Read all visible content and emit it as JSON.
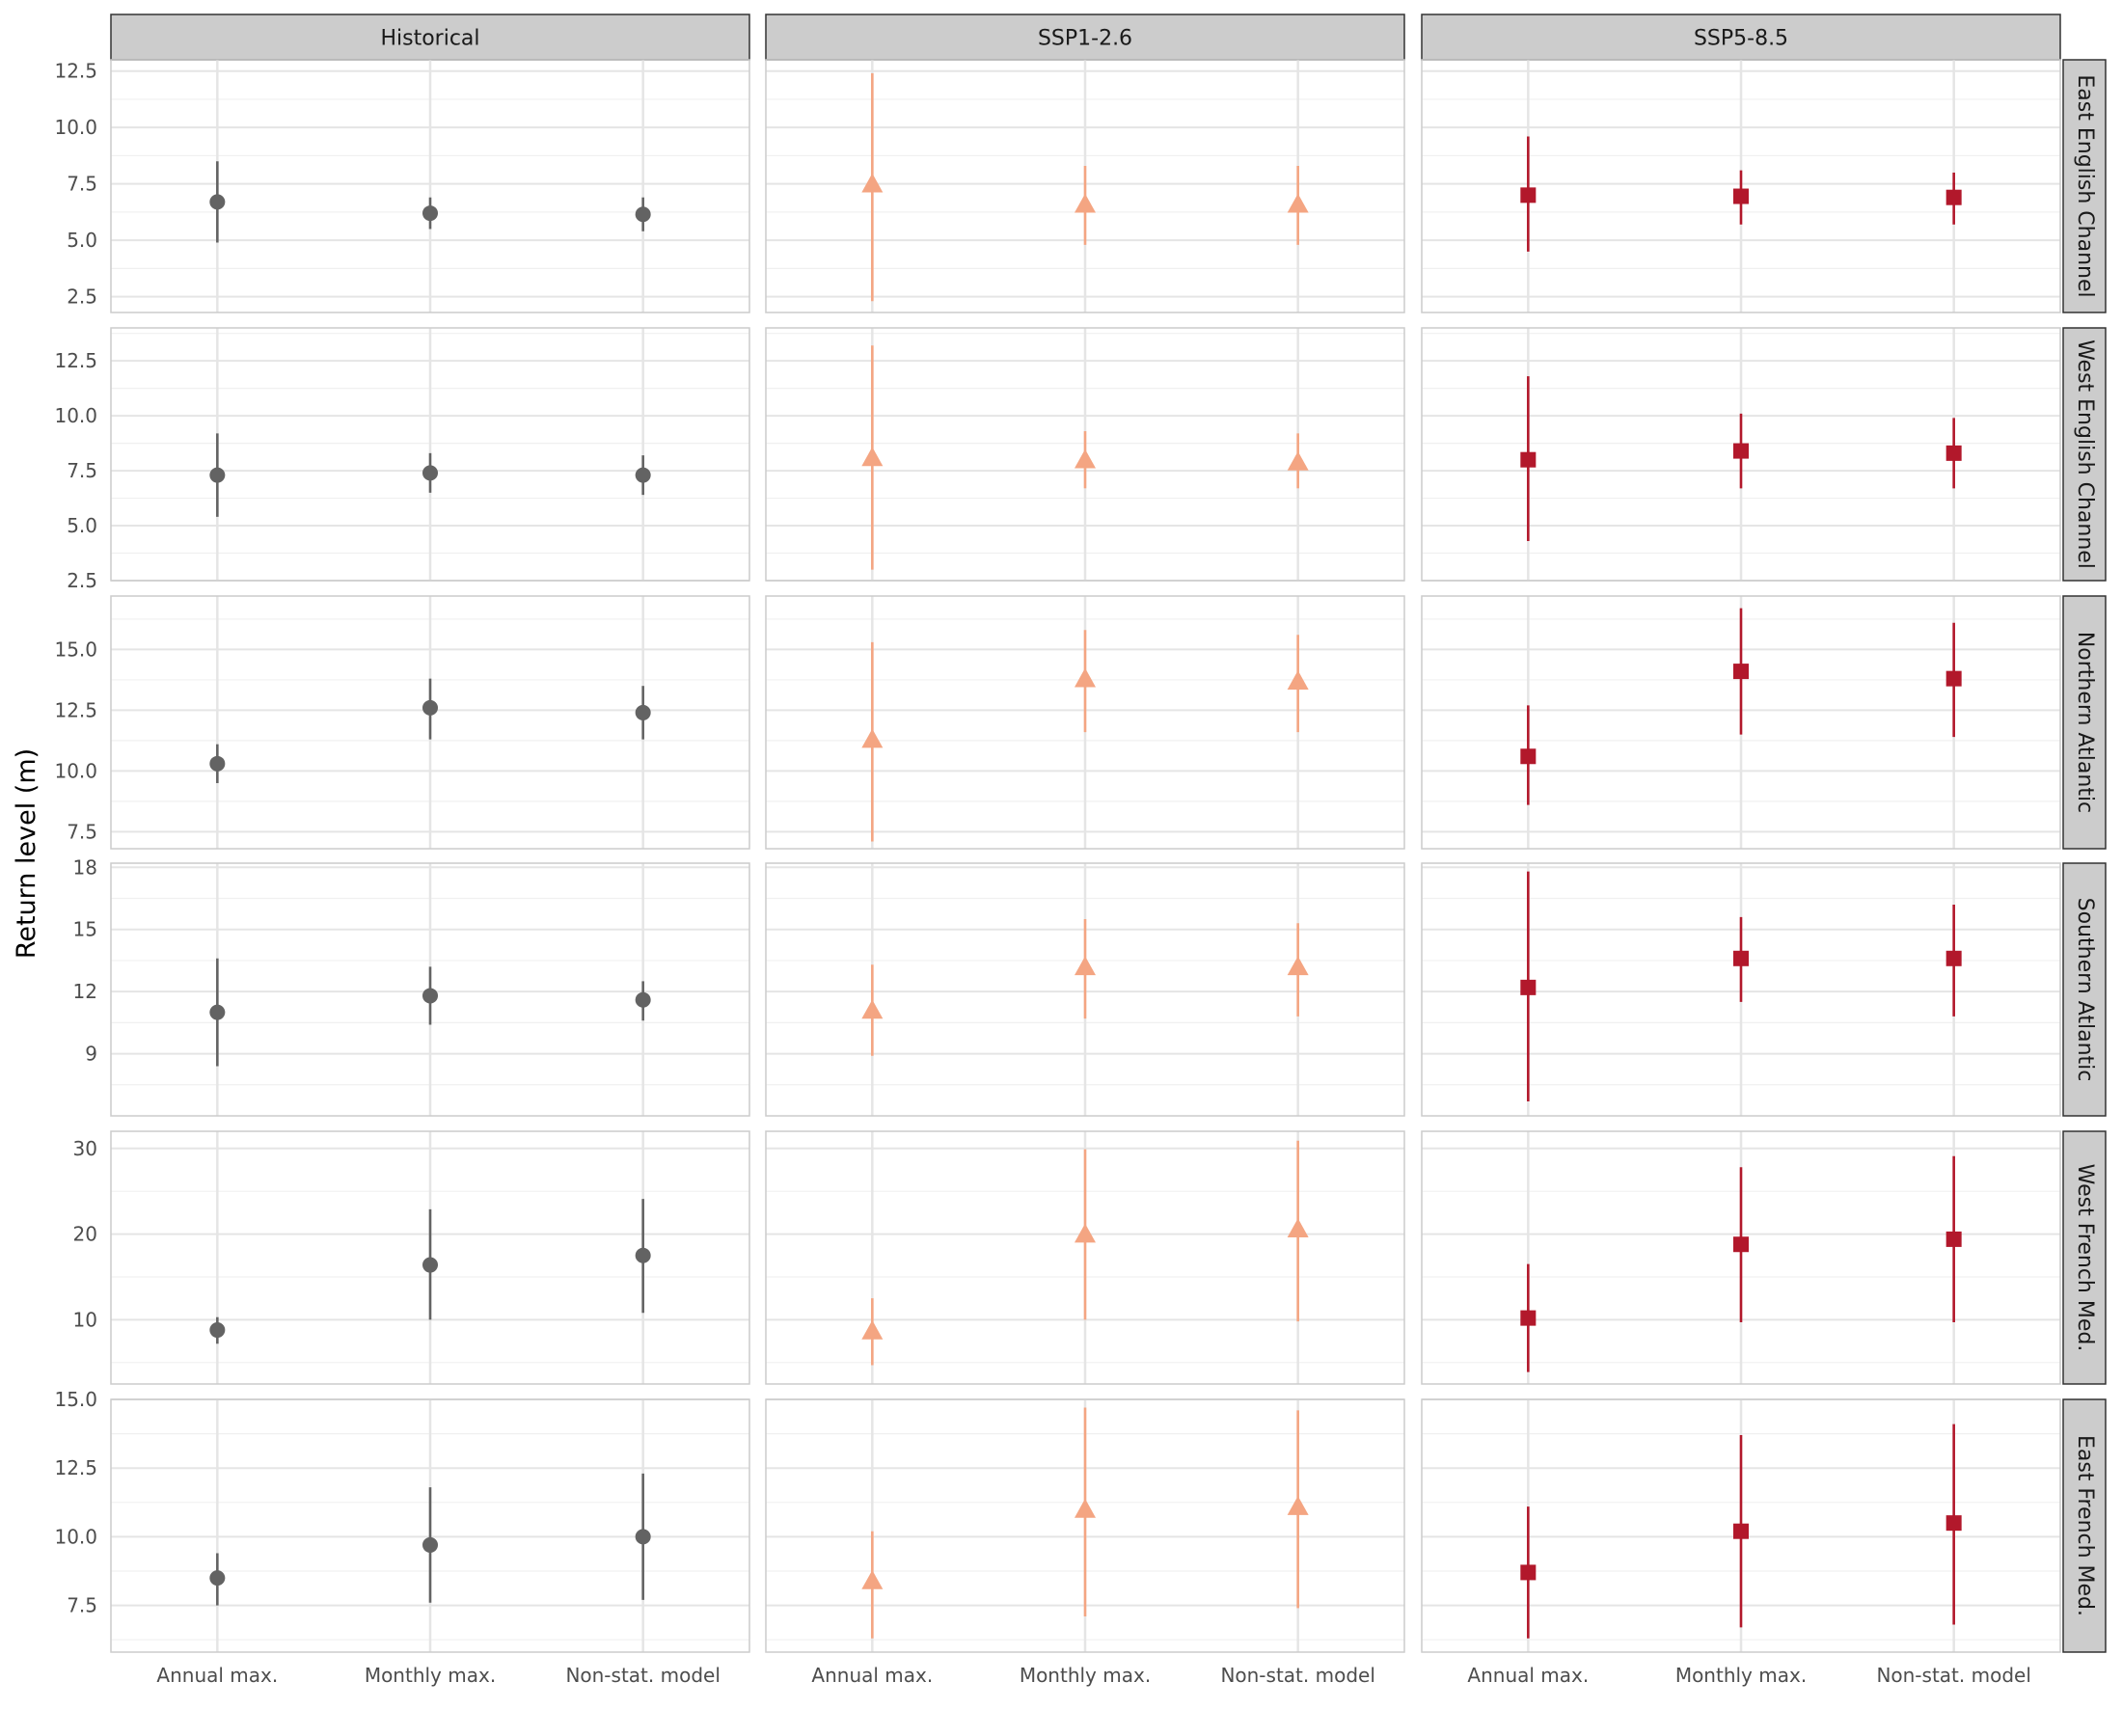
{
  "chart_data": {
    "type": "scatter",
    "subtype": "point-range faceted grid",
    "ylabel": "Return level (m)",
    "xlabel": "",
    "categories": [
      "Annual max.",
      "Monthly max.",
      "Non-stat. model"
    ],
    "columns": [
      "Historical",
      "SSP1-2.6",
      "SSP5-8.5"
    ],
    "series_style": {
      "Historical": {
        "color": "#636363",
        "shape": "circle"
      },
      "SSP1-2.6": {
        "color": "#f4a582",
        "shape": "triangle"
      },
      "SSP5-8.5": {
        "color": "#b2182b",
        "shape": "square"
      }
    },
    "grid": true,
    "free_y_scales": true,
    "rows": [
      {
        "name": "East English Channel",
        "ylim": [
          1.8,
          13
        ],
        "y_ticks": [
          2.5,
          5.0,
          7.5,
          10.0,
          12.5
        ],
        "y_tick_labels": [
          "2.5",
          "5.0",
          "7.5",
          "10.0",
          "12.5"
        ],
        "data": {
          "Historical": [
            [
              6.7,
              4.9,
              8.5
            ],
            [
              6.2,
              5.5,
              6.9
            ],
            [
              6.15,
              5.4,
              6.9
            ]
          ],
          "SSP1-2.6": [
            [
              7.5,
              2.3,
              12.4
            ],
            [
              6.6,
              4.8,
              8.3
            ],
            [
              6.6,
              4.8,
              8.3
            ]
          ],
          "SSP5-8.5": [
            [
              7.0,
              4.5,
              9.6
            ],
            [
              6.95,
              5.7,
              8.1
            ],
            [
              6.9,
              5.7,
              8.0
            ]
          ]
        }
      },
      {
        "name": "West English Channel",
        "ylim": [
          2.5,
          14.0
        ],
        "y_ticks": [
          2.5,
          5.0,
          7.5,
          10.0,
          12.5
        ],
        "y_tick_labels": [
          "2.5",
          "5.0",
          "7.5",
          "10.0",
          "12.5"
        ],
        "data": {
          "Historical": [
            [
              7.3,
              5.4,
              9.2
            ],
            [
              7.4,
              6.5,
              8.3
            ],
            [
              7.3,
              6.4,
              8.2
            ]
          ],
          "SSP1-2.6": [
            [
              8.1,
              3.0,
              13.2
            ],
            [
              8.0,
              6.7,
              9.3
            ],
            [
              7.9,
              6.7,
              9.2
            ]
          ],
          "SSP5-8.5": [
            [
              8.0,
              4.3,
              11.8
            ],
            [
              8.4,
              6.7,
              10.1
            ],
            [
              8.3,
              6.7,
              9.9
            ]
          ]
        }
      },
      {
        "name": "Northern Atlantic",
        "ylim": [
          6.8,
          17.2
        ],
        "y_ticks": [
          7.5,
          10.0,
          12.5,
          15.0
        ],
        "y_tick_labels": [
          "7.5",
          "10.0",
          "12.5",
          "15.0"
        ],
        "data": {
          "Historical": [
            [
              10.3,
              9.5,
              11.1
            ],
            [
              12.6,
              11.3,
              13.8
            ],
            [
              12.4,
              11.3,
              13.5
            ]
          ],
          "SSP1-2.6": [
            [
              11.3,
              7.1,
              15.3
            ],
            [
              13.8,
              11.6,
              15.8
            ],
            [
              13.7,
              11.6,
              15.6
            ]
          ],
          "SSP5-8.5": [
            [
              10.6,
              8.6,
              12.7
            ],
            [
              14.1,
              11.5,
              16.7
            ],
            [
              13.8,
              11.4,
              16.1
            ]
          ]
        }
      },
      {
        "name": "Southern Atlantic",
        "ylim": [
          6.0,
          18.2
        ],
        "y_ticks": [
          9,
          12,
          15,
          18
        ],
        "y_tick_labels": [
          "9",
          "12",
          "15",
          "18"
        ],
        "data": {
          "Historical": [
            [
              11.0,
              8.4,
              13.6
            ],
            [
              11.8,
              10.4,
              13.2
            ],
            [
              11.6,
              10.6,
              12.5
            ]
          ],
          "SSP1-2.6": [
            [
              11.1,
              8.9,
              13.3
            ],
            [
              13.2,
              10.7,
              15.5
            ],
            [
              13.2,
              10.8,
              15.3
            ]
          ],
          "SSP5-8.5": [
            [
              12.2,
              6.7,
              17.8
            ],
            [
              13.6,
              11.5,
              15.6
            ],
            [
              13.6,
              10.8,
              16.2
            ]
          ]
        }
      },
      {
        "name": "West French Med.",
        "ylim": [
          2.5,
          32.0
        ],
        "y_ticks": [
          10,
          20,
          30
        ],
        "y_tick_labels": [
          "10",
          "20",
          "30"
        ],
        "data": {
          "Historical": [
            [
              8.8,
              7.2,
              10.3
            ],
            [
              16.4,
              10.0,
              22.9
            ],
            [
              17.5,
              10.8,
              24.1
            ]
          ],
          "SSP1-2.6": [
            [
              8.7,
              4.7,
              12.5
            ],
            [
              20.0,
              10.0,
              29.9
            ],
            [
              20.6,
              9.8,
              30.9
            ]
          ],
          "SSP5-8.5": [
            [
              10.2,
              3.9,
              16.5
            ],
            [
              18.8,
              9.7,
              27.8
            ],
            [
              19.4,
              9.7,
              29.1
            ]
          ]
        }
      },
      {
        "name": "East French Med.",
        "ylim": [
          5.8,
          15.0
        ],
        "y_ticks": [
          7.5,
          10.0,
          12.5,
          15.0
        ],
        "y_tick_labels": [
          "7.5",
          "10.0",
          "12.5",
          "15.0"
        ],
        "data": {
          "Historical": [
            [
              8.5,
              7.5,
              9.4
            ],
            [
              9.7,
              7.6,
              11.8
            ],
            [
              10.0,
              7.7,
              12.3
            ]
          ],
          "SSP1-2.6": [
            [
              8.4,
              6.3,
              10.2
            ],
            [
              11.0,
              7.1,
              14.7
            ],
            [
              11.1,
              7.4,
              14.6
            ]
          ],
          "SSP5-8.5": [
            [
              8.7,
              6.3,
              11.1
            ],
            [
              10.2,
              6.7,
              13.7
            ],
            [
              10.5,
              6.8,
              14.1
            ]
          ]
        }
      }
    ]
  }
}
